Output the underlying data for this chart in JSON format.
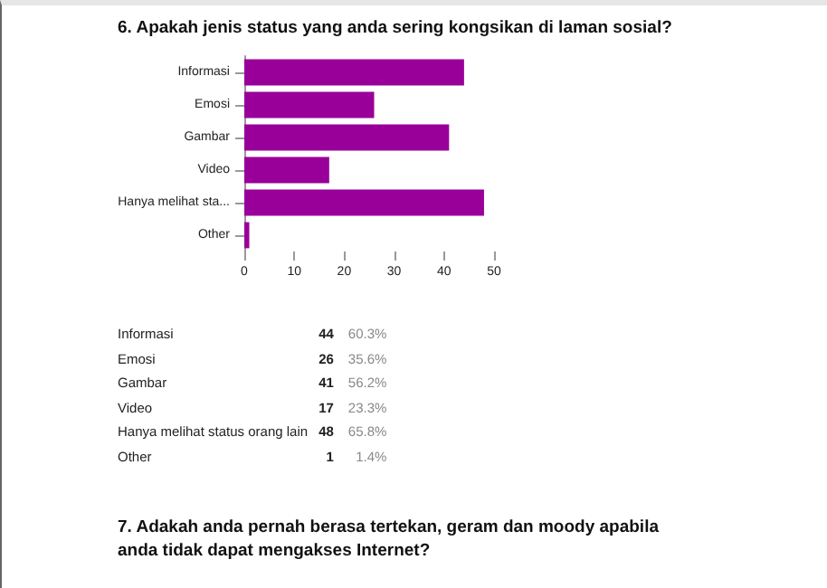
{
  "chart_data": [
    {
      "type": "bar",
      "orientation": "horizontal",
      "title": "6. Apakah jenis status yang anda sering kongsikan di laman sosial?",
      "categories": [
        "Informasi",
        "Emosi",
        "Gambar",
        "Video",
        "Hanya melihat sta...",
        "Other"
      ],
      "values": [
        44,
        26,
        41,
        17,
        48,
        1
      ],
      "color": "#990099",
      "xlim": [
        0,
        50
      ],
      "xticks": [
        0,
        10,
        20,
        30,
        40,
        50
      ],
      "grid": false
    },
    {
      "type": "other",
      "categories": [
        "Informasi",
        "Emosi",
        "Gambar",
        "Video",
        "Hanya melihat status orang lain",
        "Other"
      ],
      "series": [
        {
          "values": [
            44,
            26,
            41,
            17,
            48,
            1
          ]
        },
        {
          "values": [
            60.3,
            35.6,
            56.2,
            23.3,
            65.8,
            1.4
          ],
          "value_labels": [
            "60.3%",
            "35.6%",
            "56.2%",
            "23.3%",
            "65.8%",
            "1.4%"
          ]
        }
      ],
      "data_labels": true,
      "annotations": [
        "7. Adakah anda pernah berasa tertekan, geram dan moody apabila anda tidak dapat mengakses Internet?"
      ]
    }
  ]
}
